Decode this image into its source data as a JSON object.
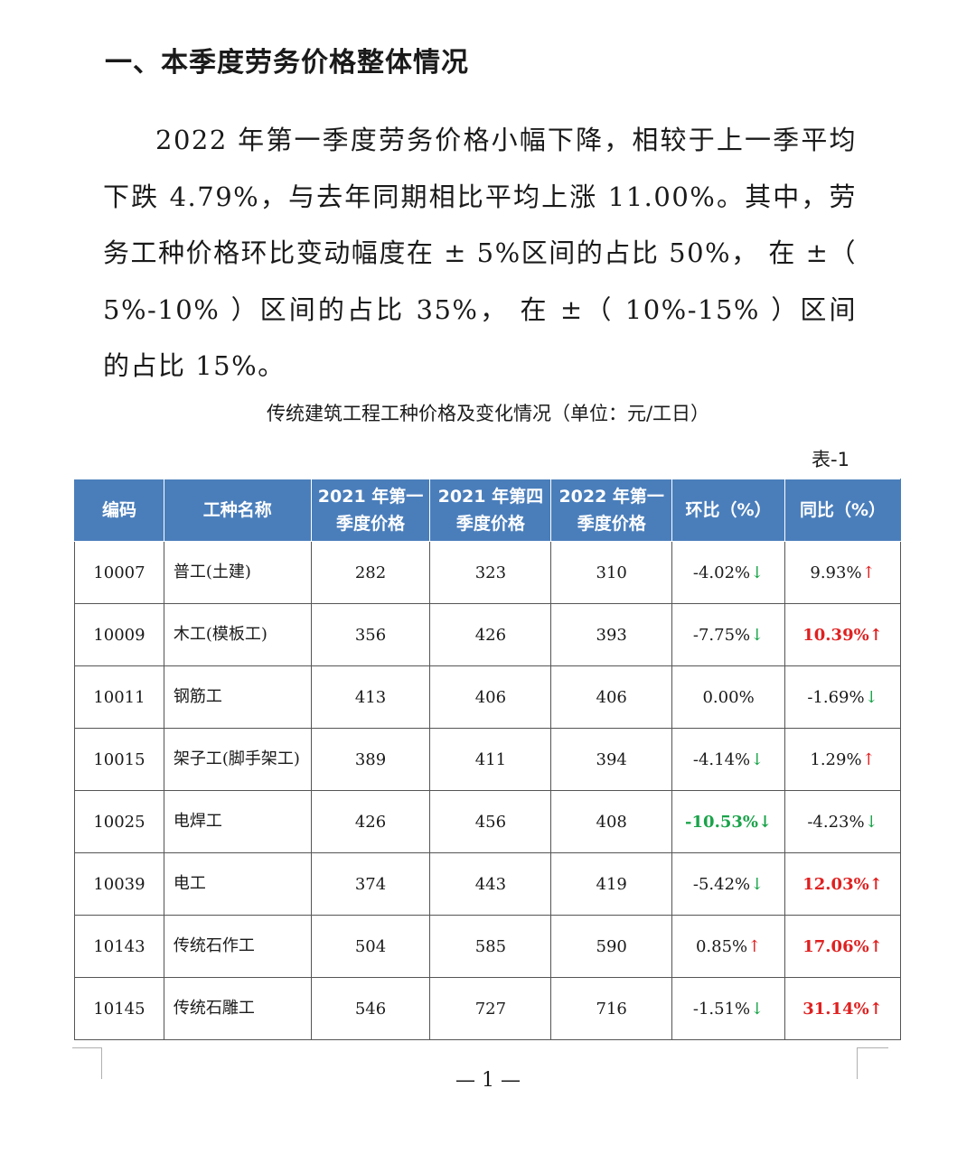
{
  "heading": "一、本季度劳务价格整体情况",
  "paragraph": "2022 年第一季度劳务价格小幅下降，相较于上一季平均下跌 4.79%，与去年同期相比平均上涨 11.00%。其中，劳务工种价格环比变动幅度在 ± 5%区间的占比 50%， 在 ±（ 5%-10% ）区间的占比 35%， 在 ±（ 10%-15% ）区间的占比 15%。",
  "table_title": "传统建筑工程工种价格及变化情况（单位：元/工日）",
  "table_no": "表-1",
  "table": {
    "headers": {
      "code": "编码",
      "name": "工种名称",
      "q1_2021": "2021 年第一季度价格",
      "q4_2021": "2021 年第四季度价格",
      "q1_2022": "2022 年第一季度价格",
      "mom": "环比（%）",
      "yoy": "同比（%）"
    },
    "rows": [
      {
        "code": "10007",
        "name": "普工(土建)",
        "q1_2021": "282",
        "q4_2021": "323",
        "q1_2022": "310",
        "mom": "-4.02%",
        "mom_arrow": "↓",
        "yoy": "9.93%",
        "yoy_arrow": "↑"
      },
      {
        "code": "10009",
        "name": "木工(模板工)",
        "q1_2021": "356",
        "q4_2021": "426",
        "q1_2022": "393",
        "mom": "-7.75%",
        "mom_arrow": "↓",
        "yoy": "10.39%",
        "yoy_arrow": "↑"
      },
      {
        "code": "10011",
        "name": "钢筋工",
        "q1_2021": "413",
        "q4_2021": "406",
        "q1_2022": "406",
        "mom": "0.00%",
        "mom_arrow": "",
        "yoy": "-1.69%",
        "yoy_arrow": "↓"
      },
      {
        "code": "10015",
        "name": "架子工(脚手架工)",
        "q1_2021": "389",
        "q4_2021": "411",
        "q1_2022": "394",
        "mom": "-4.14%",
        "mom_arrow": "↓",
        "yoy": "1.29%",
        "yoy_arrow": "↑"
      },
      {
        "code": "10025",
        "name": "电焊工",
        "q1_2021": "426",
        "q4_2021": "456",
        "q1_2022": "408",
        "mom": "-10.53%",
        "mom_arrow": "↓",
        "yoy": "-4.23%",
        "yoy_arrow": "↓"
      },
      {
        "code": "10039",
        "name": "电工",
        "q1_2021": "374",
        "q4_2021": "443",
        "q1_2022": "419",
        "mom": "-5.42%",
        "mom_arrow": "↓",
        "yoy": "12.03%",
        "yoy_arrow": "↑"
      },
      {
        "code": "10143",
        "name": "传统石作工",
        "q1_2021": "504",
        "q4_2021": "585",
        "q1_2022": "590",
        "mom": "0.85%",
        "mom_arrow": "↑",
        "yoy": "17.06%",
        "yoy_arrow": "↑"
      },
      {
        "code": "10145",
        "name": "传统石雕工",
        "q1_2021": "546",
        "q4_2021": "727",
        "q1_2022": "716",
        "mom": "-1.51%",
        "mom_arrow": "↓",
        "yoy": "31.14%",
        "yoy_arrow": "↑"
      }
    ]
  },
  "page_number": "— 1 —",
  "colors": {
    "header_bg": "#4a7ebb",
    "up": "#e02020",
    "down": "#1aa34a"
  }
}
